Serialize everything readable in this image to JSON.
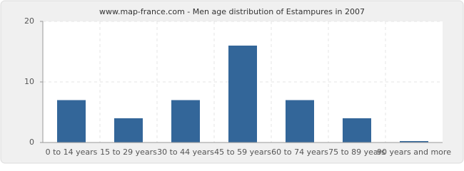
{
  "chart_data": {
    "type": "bar",
    "title": "www.map-france.com - Men age distribution of Estampures in 2007",
    "categories": [
      "0 to 14 years",
      "15 to 29 years",
      "30 to 44 years",
      "45 to 59 years",
      "60 to 74 years",
      "75 to 89 years",
      "90 years and more"
    ],
    "values": [
      7,
      4,
      7,
      16,
      7,
      4,
      0
    ],
    "color": "#336699",
    "ylim": [
      0,
      20
    ],
    "yticks": [
      0,
      10,
      20
    ],
    "grid": true
  }
}
